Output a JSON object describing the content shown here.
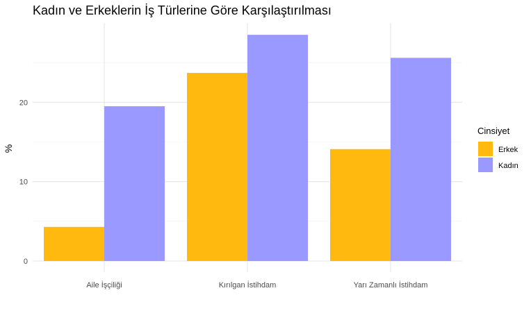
{
  "chart_data": {
    "type": "bar",
    "title": "Kadın ve Erkeklerin İş Türlerine Göre Karşılaştırılması",
    "xlabel": "",
    "ylabel": "%",
    "categories": [
      "Aile İşçiliği",
      "Kırılgan İstihdam",
      "Yarı Zamanlı İstihdam"
    ],
    "series": [
      {
        "name": "Erkek",
        "values": [
          4.3,
          23.7,
          14.1
        ],
        "color": "#FFB90F"
      },
      {
        "name": "Kadın",
        "values": [
          19.5,
          28.5,
          25.6
        ],
        "color": "#9999FF"
      }
    ],
    "y_ticks": [
      0,
      10,
      20
    ],
    "ylim": [
      -1.4,
      30.0
    ],
    "grid": true,
    "legend": {
      "title": "Cinsiyet",
      "position": "right"
    }
  }
}
